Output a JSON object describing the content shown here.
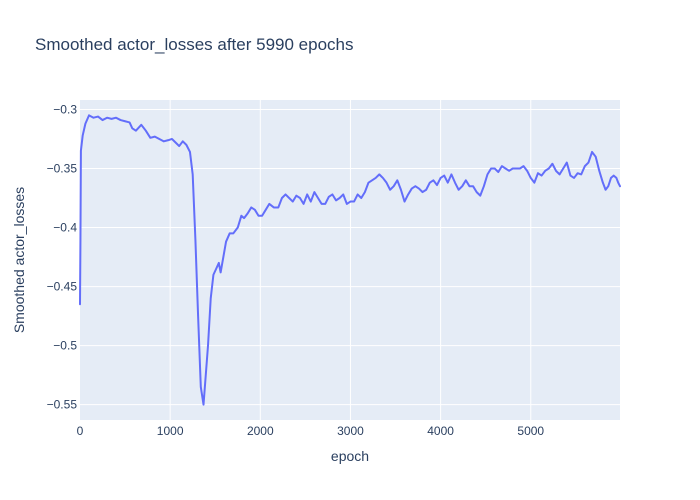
{
  "chart_data": {
    "type": "line",
    "title": "Smoothed actor_losses after 5990 epochs",
    "xlabel": "epoch",
    "ylabel": "Smoothed actor_losses",
    "xlim": [
      0,
      5990
    ],
    "ylim": [
      -0.563,
      -0.292
    ],
    "x_ticks": [
      0,
      1000,
      2000,
      3000,
      4000,
      5000
    ],
    "x_tick_labels": [
      "0",
      "1000",
      "2000",
      "3000",
      "4000",
      "5000"
    ],
    "y_ticks": [
      -0.3,
      -0.35,
      -0.4,
      -0.45,
      -0.5,
      -0.55
    ],
    "y_tick_labels": [
      "−0.3",
      "−0.35",
      "−0.4",
      "−0.45",
      "−0.5",
      "−0.55"
    ],
    "grid": true,
    "legend": "none",
    "series": [
      {
        "color": "#636efa",
        "points": [
          [
            0,
            -0.465
          ],
          [
            5,
            -0.41
          ],
          [
            10,
            -0.335
          ],
          [
            30,
            -0.322
          ],
          [
            60,
            -0.312
          ],
          [
            100,
            -0.305
          ],
          [
            150,
            -0.307
          ],
          [
            200,
            -0.306
          ],
          [
            250,
            -0.309
          ],
          [
            300,
            -0.307
          ],
          [
            350,
            -0.308
          ],
          [
            400,
            -0.307
          ],
          [
            450,
            -0.309
          ],
          [
            500,
            -0.31
          ],
          [
            550,
            -0.311
          ],
          [
            580,
            -0.316
          ],
          [
            620,
            -0.318
          ],
          [
            680,
            -0.313
          ],
          [
            730,
            -0.318
          ],
          [
            780,
            -0.324
          ],
          [
            830,
            -0.323
          ],
          [
            880,
            -0.325
          ],
          [
            930,
            -0.327
          ],
          [
            980,
            -0.326
          ],
          [
            1020,
            -0.325
          ],
          [
            1060,
            -0.328
          ],
          [
            1100,
            -0.331
          ],
          [
            1140,
            -0.327
          ],
          [
            1180,
            -0.33
          ],
          [
            1220,
            -0.336
          ],
          [
            1250,
            -0.355
          ],
          [
            1280,
            -0.41
          ],
          [
            1310,
            -0.475
          ],
          [
            1340,
            -0.535
          ],
          [
            1370,
            -0.55
          ],
          [
            1390,
            -0.53
          ],
          [
            1420,
            -0.5
          ],
          [
            1450,
            -0.46
          ],
          [
            1480,
            -0.44
          ],
          [
            1510,
            -0.435
          ],
          [
            1540,
            -0.43
          ],
          [
            1560,
            -0.438
          ],
          [
            1590,
            -0.425
          ],
          [
            1620,
            -0.412
          ],
          [
            1660,
            -0.405
          ],
          [
            1700,
            -0.405
          ],
          [
            1750,
            -0.4
          ],
          [
            1790,
            -0.39
          ],
          [
            1820,
            -0.392
          ],
          [
            1860,
            -0.388
          ],
          [
            1900,
            -0.383
          ],
          [
            1940,
            -0.385
          ],
          [
            1980,
            -0.39
          ],
          [
            2020,
            -0.39
          ],
          [
            2060,
            -0.385
          ],
          [
            2100,
            -0.38
          ],
          [
            2150,
            -0.383
          ],
          [
            2200,
            -0.383
          ],
          [
            2240,
            -0.375
          ],
          [
            2280,
            -0.372
          ],
          [
            2320,
            -0.375
          ],
          [
            2360,
            -0.378
          ],
          [
            2400,
            -0.373
          ],
          [
            2440,
            -0.375
          ],
          [
            2480,
            -0.38
          ],
          [
            2520,
            -0.372
          ],
          [
            2560,
            -0.378
          ],
          [
            2600,
            -0.37
          ],
          [
            2640,
            -0.375
          ],
          [
            2680,
            -0.38
          ],
          [
            2720,
            -0.38
          ],
          [
            2760,
            -0.374
          ],
          [
            2800,
            -0.372
          ],
          [
            2840,
            -0.377
          ],
          [
            2880,
            -0.375
          ],
          [
            2920,
            -0.372
          ],
          [
            2960,
            -0.38
          ],
          [
            3000,
            -0.378
          ],
          [
            3040,
            -0.378
          ],
          [
            3080,
            -0.372
          ],
          [
            3120,
            -0.375
          ],
          [
            3160,
            -0.37
          ],
          [
            3200,
            -0.362
          ],
          [
            3240,
            -0.36
          ],
          [
            3280,
            -0.358
          ],
          [
            3320,
            -0.355
          ],
          [
            3360,
            -0.358
          ],
          [
            3400,
            -0.362
          ],
          [
            3440,
            -0.368
          ],
          [
            3480,
            -0.365
          ],
          [
            3520,
            -0.36
          ],
          [
            3560,
            -0.368
          ],
          [
            3600,
            -0.378
          ],
          [
            3640,
            -0.372
          ],
          [
            3680,
            -0.367
          ],
          [
            3720,
            -0.365
          ],
          [
            3760,
            -0.367
          ],
          [
            3800,
            -0.37
          ],
          [
            3840,
            -0.368
          ],
          [
            3880,
            -0.362
          ],
          [
            3920,
            -0.36
          ],
          [
            3960,
            -0.364
          ],
          [
            4000,
            -0.358
          ],
          [
            4040,
            -0.356
          ],
          [
            4080,
            -0.362
          ],
          [
            4120,
            -0.355
          ],
          [
            4160,
            -0.362
          ],
          [
            4200,
            -0.368
          ],
          [
            4240,
            -0.365
          ],
          [
            4280,
            -0.36
          ],
          [
            4320,
            -0.365
          ],
          [
            4360,
            -0.365
          ],
          [
            4400,
            -0.37
          ],
          [
            4440,
            -0.373
          ],
          [
            4480,
            -0.365
          ],
          [
            4520,
            -0.355
          ],
          [
            4560,
            -0.35
          ],
          [
            4600,
            -0.35
          ],
          [
            4640,
            -0.353
          ],
          [
            4680,
            -0.348
          ],
          [
            4720,
            -0.35
          ],
          [
            4760,
            -0.352
          ],
          [
            4800,
            -0.35
          ],
          [
            4840,
            -0.35
          ],
          [
            4880,
            -0.35
          ],
          [
            4920,
            -0.348
          ],
          [
            4960,
            -0.352
          ],
          [
            5000,
            -0.358
          ],
          [
            5040,
            -0.362
          ],
          [
            5080,
            -0.354
          ],
          [
            5120,
            -0.356
          ],
          [
            5160,
            -0.352
          ],
          [
            5200,
            -0.35
          ],
          [
            5240,
            -0.346
          ],
          [
            5280,
            -0.352
          ],
          [
            5320,
            -0.355
          ],
          [
            5360,
            -0.35
          ],
          [
            5400,
            -0.345
          ],
          [
            5440,
            -0.356
          ],
          [
            5480,
            -0.358
          ],
          [
            5520,
            -0.354
          ],
          [
            5560,
            -0.355
          ],
          [
            5600,
            -0.348
          ],
          [
            5640,
            -0.345
          ],
          [
            5680,
            -0.336
          ],
          [
            5720,
            -0.34
          ],
          [
            5760,
            -0.352
          ],
          [
            5800,
            -0.362
          ],
          [
            5830,
            -0.368
          ],
          [
            5860,
            -0.365
          ],
          [
            5890,
            -0.358
          ],
          [
            5920,
            -0.356
          ],
          [
            5950,
            -0.358
          ],
          [
            5970,
            -0.362
          ],
          [
            5990,
            -0.365
          ]
        ]
      }
    ]
  }
}
